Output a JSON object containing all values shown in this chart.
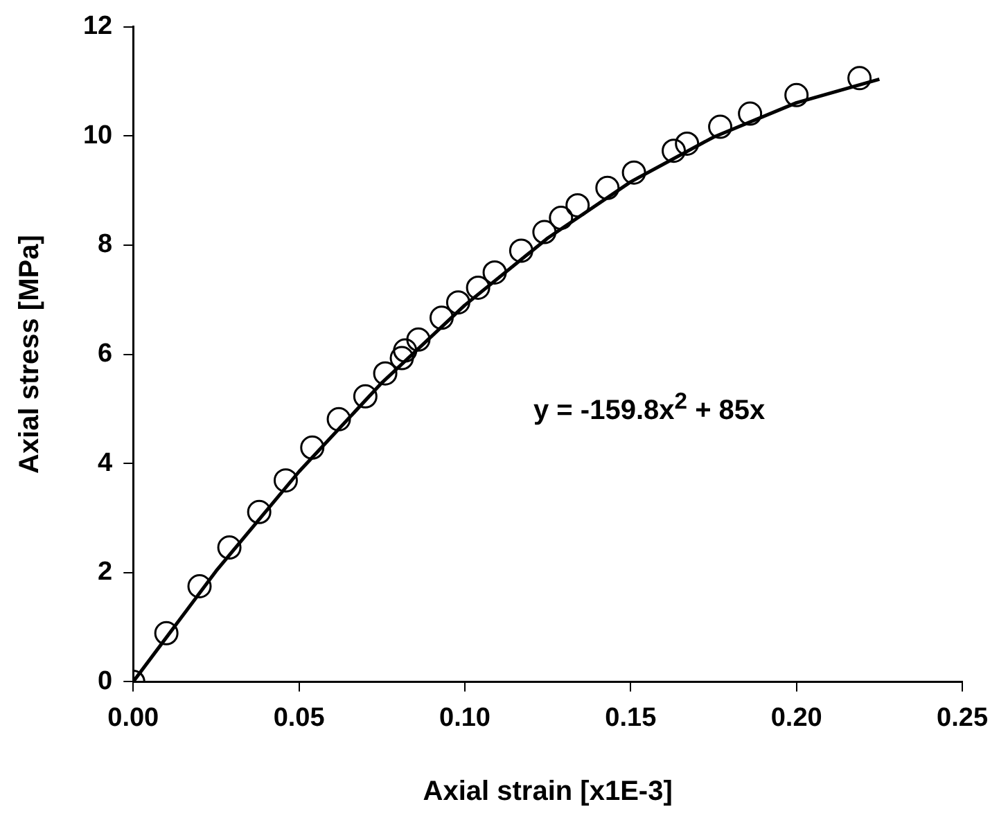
{
  "chart_data": {
    "type": "scatter",
    "xlabel": "Axial strain [x1E-3]",
    "ylabel": "Axial stress [MPa]",
    "xlim": [
      0,
      0.25
    ],
    "xticks": [
      {
        "value": 0,
        "label": "0.00"
      },
      {
        "value": 0.05,
        "label": "0.05"
      },
      {
        "value": 0.1,
        "label": "0.10"
      },
      {
        "value": 0.15,
        "label": "0.15"
      },
      {
        "value": 0.2,
        "label": "0.20"
      },
      {
        "value": 0.25,
        "label": "0.25"
      }
    ],
    "ylim": [
      0,
      12
    ],
    "yticks": [
      0,
      2,
      4,
      6,
      8,
      10,
      12
    ],
    "grid": false,
    "legend": false,
    "marker": "circle",
    "annotations": [
      "y = -159.8x$^{2}$ + 85x"
    ],
    "series": [
      {
        "color": "#000000",
        "x": [
          0,
          0.01,
          0.02,
          0.029,
          0.038,
          0.046,
          0.054,
          0.062,
          0.07,
          0.076,
          0.081,
          0.082,
          0.086,
          0.093,
          0.098,
          0.104,
          0.109,
          0.117,
          0.124,
          0.129,
          0.134,
          0.143,
          0.151,
          0.163,
          0.167,
          0.177,
          0.186,
          0.2,
          0.219
        ],
        "values": [
          0,
          0.89,
          1.75,
          2.46,
          3.11,
          3.69,
          4.29,
          4.81,
          5.23,
          5.65,
          5.93,
          6.07,
          6.27,
          6.67,
          6.95,
          7.22,
          7.5,
          7.9,
          8.24,
          8.5,
          8.73,
          9.05,
          9.33,
          9.73,
          9.86,
          10.17,
          10.41,
          10.75,
          11.06
        ]
      },
      {
        "type": "line",
        "color": "#000000",
        "marker": "none",
        "line_style": "solid",
        "x": [
          0,
          0.025,
          0.05,
          0.075,
          0.1,
          0.125,
          0.15,
          0.175,
          0.2,
          0.225
        ],
        "values": [
          0,
          2.03,
          3.85,
          5.48,
          6.9,
          8.13,
          9.16,
          9.98,
          10.61,
          11.04
        ]
      }
    ]
  }
}
